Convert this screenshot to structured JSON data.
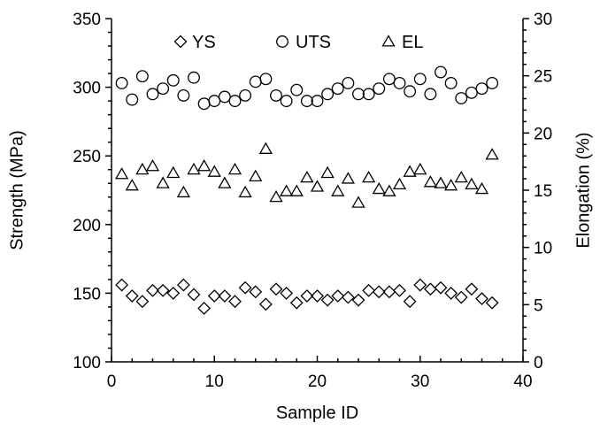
{
  "chart_data": {
    "type": "scatter",
    "xlabel": "Sample ID",
    "ylabel": "Strength (MPa)",
    "y2label": "Elongation (%)",
    "xlim": [
      0,
      40
    ],
    "ylim": [
      100,
      350
    ],
    "y2lim": [
      0,
      30
    ],
    "x_ticks": [
      0,
      10,
      20,
      30,
      40
    ],
    "y_ticks": [
      100,
      150,
      200,
      250,
      300,
      350
    ],
    "y2_ticks": [
      0,
      5,
      10,
      15,
      20,
      25,
      30
    ],
    "grid": false,
    "legend_position": "top",
    "series": [
      {
        "name": "YS",
        "marker": "diamond",
        "axis": "left",
        "x": [
          1,
          2,
          3,
          4,
          5,
          6,
          7,
          8,
          9,
          10,
          11,
          12,
          13,
          14,
          15,
          16,
          17,
          18,
          19,
          20,
          21,
          22,
          23,
          24,
          25,
          26,
          27,
          28,
          29,
          30,
          31,
          32,
          33,
          34,
          35,
          36,
          37
        ],
        "y": [
          156,
          148,
          144,
          152,
          152,
          150,
          156,
          149,
          139,
          148,
          148,
          144,
          154,
          151,
          142,
          153,
          150,
          143,
          148,
          148,
          145,
          148,
          147,
          145,
          152,
          151,
          151,
          152,
          144,
          156,
          153,
          154,
          150,
          147,
          153,
          146,
          143
        ]
      },
      {
        "name": "UTS",
        "marker": "circle",
        "axis": "left",
        "x": [
          1,
          2,
          3,
          4,
          5,
          6,
          7,
          8,
          9,
          10,
          11,
          12,
          13,
          14,
          15,
          16,
          17,
          18,
          19,
          20,
          21,
          22,
          23,
          24,
          25,
          26,
          27,
          28,
          29,
          30,
          31,
          32,
          33,
          34,
          35,
          36,
          37
        ],
        "y": [
          303,
          291,
          308,
          295,
          299,
          305,
          294,
          307,
          288,
          290,
          293,
          290,
          294,
          304,
          306,
          294,
          290,
          298,
          290,
          290,
          295,
          299,
          303,
          295,
          295,
          299,
          306,
          303,
          297,
          306,
          295,
          311,
          303,
          292,
          296,
          299,
          303
        ]
      },
      {
        "name": "EL",
        "marker": "triangle",
        "axis": "right",
        "x": [
          1,
          2,
          3,
          4,
          5,
          6,
          7,
          8,
          9,
          10,
          11,
          12,
          13,
          14,
          15,
          16,
          17,
          18,
          19,
          20,
          21,
          22,
          23,
          24,
          25,
          26,
          27,
          28,
          29,
          30,
          31,
          32,
          33,
          34,
          35,
          36,
          37
        ],
        "y": [
          16.4,
          15.4,
          16.8,
          17.1,
          15.6,
          16.5,
          14.8,
          16.8,
          17.1,
          16.6,
          15.6,
          16.8,
          14.8,
          16.2,
          18.6,
          14.4,
          14.9,
          14.9,
          16.1,
          15.3,
          16.5,
          14.9,
          16.0,
          13.9,
          16.1,
          15.1,
          14.9,
          15.5,
          16.6,
          16.8,
          15.7,
          15.6,
          15.4,
          16.1,
          15.5,
          15.1,
          18.1
        ]
      }
    ]
  }
}
